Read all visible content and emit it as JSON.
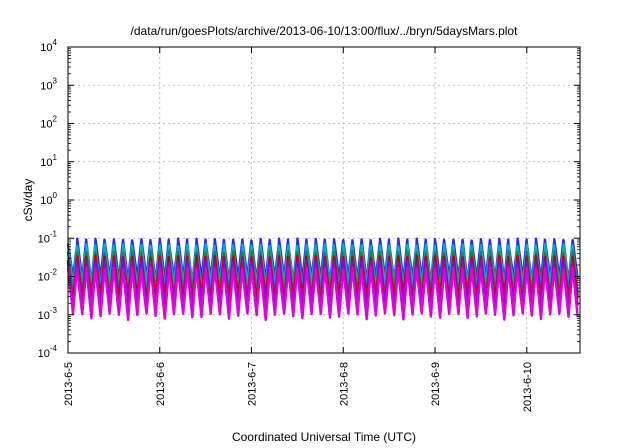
{
  "chart_data": {
    "type": "line",
    "title": "/data/run/goesPlots/archive/2013-06-10/13:00/flux/../bryn/5daysMars.plot",
    "xlabel": "Coordinated Universal Time (UTC)",
    "ylabel": "cSv/day",
    "y_scale": "log",
    "ylim": [
      0.0001,
      10000
    ],
    "xlim": [
      0,
      5.58
    ],
    "grid": true,
    "x_ticks": [
      {
        "label": "2013-6-5",
        "value": 0
      },
      {
        "label": "2013-6-6",
        "value": 1
      },
      {
        "label": "2013-6-7",
        "value": 2
      },
      {
        "label": "2013-6-8",
        "value": 3
      },
      {
        "label": "2013-6-9",
        "value": 4
      },
      {
        "label": "2013-6-10",
        "value": 5
      }
    ],
    "y_ticks": [
      {
        "base": "10",
        "exp": "-4",
        "value": 0.0001
      },
      {
        "base": "10",
        "exp": "-3",
        "value": 0.001
      },
      {
        "base": "10",
        "exp": "-2",
        "value": 0.01
      },
      {
        "base": "10",
        "exp": "-1",
        "value": 0.1
      },
      {
        "base": "10",
        "exp": "0",
        "value": 1
      },
      {
        "base": "10",
        "exp": "1",
        "value": 10
      },
      {
        "base": "10",
        "exp": "2",
        "value": 100
      },
      {
        "base": "10",
        "exp": "3",
        "value": 1000
      },
      {
        "base": "10",
        "exp": "4",
        "value": 10000
      }
    ],
    "sawtooth_period_days": 0.1,
    "series": [
      {
        "color": "#2a2aff",
        "peak": 0.085,
        "trough": 0.008
      },
      {
        "color": "#00b0c8",
        "peak": 0.06,
        "trough": 0.005
      },
      {
        "color": "#1a8a3a",
        "peak": 0.04,
        "trough": 0.003
      },
      {
        "color": "#c80000",
        "peak": 0.03,
        "trough": 0.0022
      },
      {
        "color": "#9a00d8",
        "peak": 0.022,
        "trough": 0.0015
      },
      {
        "color": "#e000e0",
        "peak": 0.015,
        "trough": 0.0009
      }
    ]
  }
}
